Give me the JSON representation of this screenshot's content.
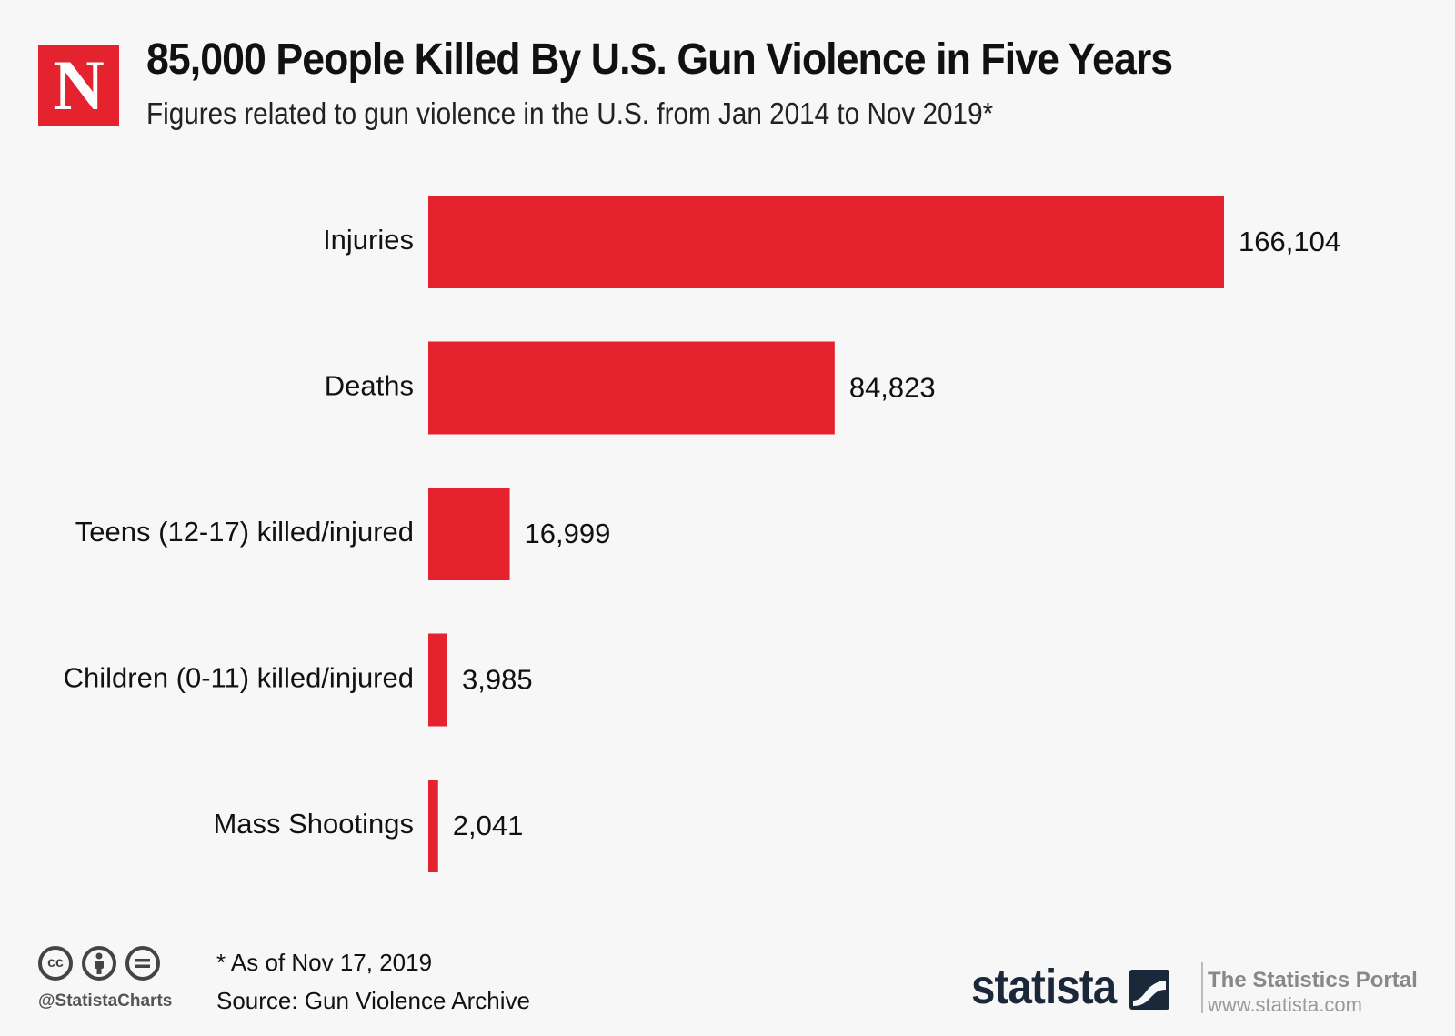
{
  "header": {
    "logo_letter": "N",
    "title": "85,000 People Killed By U.S. Gun Violence in Five Years",
    "subtitle": "Figures related to gun violence in the U.S. from Jan 2014 to Nov 2019*"
  },
  "colors": {
    "bar": "#e5232f",
    "logo": "#e5232f",
    "background": "#f7f7f7",
    "brand": "#1b2839"
  },
  "chart_data": {
    "type": "bar",
    "orientation": "horizontal",
    "title": "85,000 People Killed By U.S. Gun Violence in Five Years",
    "subtitle": "Figures related to gun violence in the U.S. from Jan 2014 to Nov 2019*",
    "categories": [
      "Injuries",
      "Deaths",
      "Teens (12-17) killed/injured",
      "Children (0-11) killed/injured",
      "Mass Shootings"
    ],
    "values": [
      166104,
      84823,
      16999,
      3985,
      2041
    ],
    "value_labels": [
      "166,104",
      "84,823",
      "16,999",
      "3,985",
      "2,041"
    ],
    "xlabel": "",
    "ylabel": "",
    "xlim": [
      0,
      166104
    ],
    "grid": false,
    "legend": "none"
  },
  "footer": {
    "cc_icons": [
      "cc-icon",
      "attribution-icon",
      "no-derivatives-icon"
    ],
    "handle": "@StatistaCharts",
    "note": "* As of Nov 17, 2019",
    "source": "Source: Gun Violence Archive",
    "brand": "statista",
    "portal_title": "The Statistics Portal",
    "portal_url": "www.statista.com"
  }
}
